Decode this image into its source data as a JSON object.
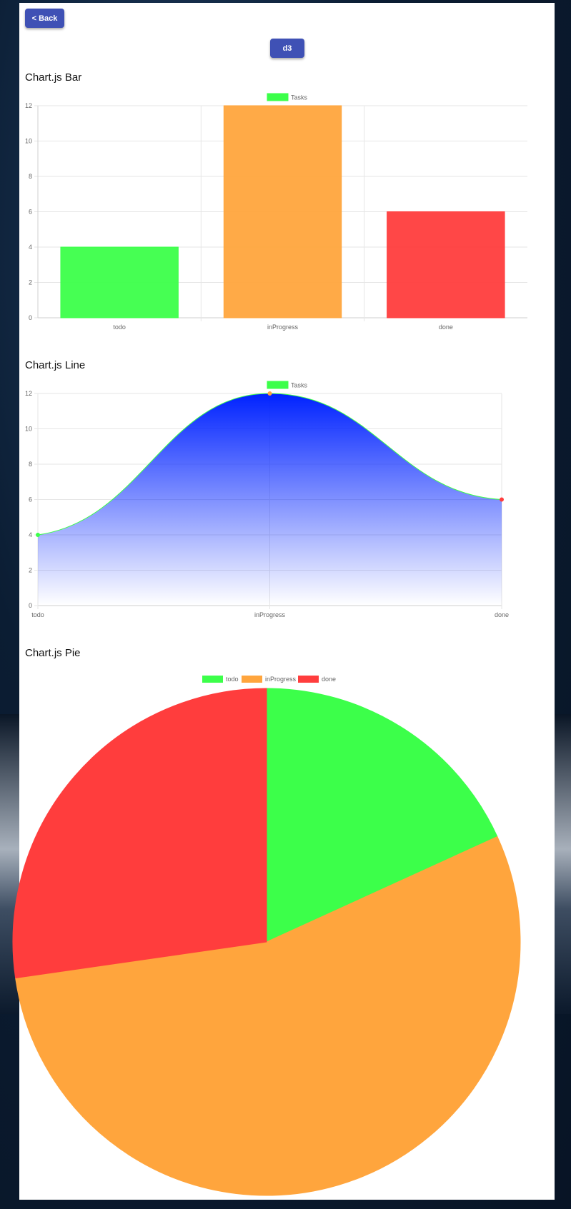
{
  "nav": {
    "back_label": "< Back",
    "d3_label": "d3"
  },
  "sections": {
    "bar_title": "Chart.js Bar",
    "line_title": "Chart.js Line",
    "pie_title": "Chart.js Pie"
  },
  "colors": {
    "green": "#3cff4a",
    "orange": "#ffa53d",
    "red": "#ff3d3d",
    "blue": "#0022ff"
  },
  "chart_data": [
    {
      "type": "bar",
      "title": "Chart.js Bar",
      "legend": [
        "Tasks"
      ],
      "categories": [
        "todo",
        "inProgress",
        "done"
      ],
      "values": [
        4,
        12,
        6
      ],
      "ylim": [
        0,
        12
      ],
      "yticks": [
        "0",
        "2",
        "4",
        "6",
        "8",
        "10",
        "12"
      ]
    },
    {
      "type": "line",
      "title": "Chart.js Line",
      "legend": [
        "Tasks"
      ],
      "categories": [
        "todo",
        "inProgress",
        "done"
      ],
      "values": [
        4,
        12,
        6
      ],
      "ylim": [
        0,
        12
      ],
      "yticks": [
        "0",
        "2",
        "4",
        "6",
        "8",
        "10",
        "12"
      ]
    },
    {
      "type": "pie",
      "title": "Chart.js Pie",
      "legend": [
        "todo",
        "inProgress",
        "done"
      ],
      "categories": [
        "todo",
        "inProgress",
        "done"
      ],
      "values": [
        4,
        12,
        6
      ]
    }
  ]
}
